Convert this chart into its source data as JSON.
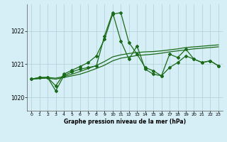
{
  "title": "Graphe pression niveau de la mer (hPa)",
  "background_color": "#d6eef5",
  "grid_color": "#b0cdd8",
  "line_color": "#1a6b1a",
  "xlim": [
    -0.5,
    23.5
  ],
  "ylim": [
    1019.6,
    1022.8
  ],
  "yticks": [
    1020,
    1021,
    1022
  ],
  "xticks": [
    0,
    1,
    2,
    3,
    4,
    5,
    6,
    7,
    8,
    9,
    10,
    11,
    12,
    13,
    14,
    15,
    16,
    17,
    18,
    19,
    20,
    21,
    22,
    23
  ],
  "series1_x": [
    0,
    1,
    2,
    3,
    4,
    5,
    6,
    7,
    8,
    9,
    10,
    11,
    12,
    13,
    14,
    15,
    16,
    17,
    18,
    19,
    20,
    21,
    22,
    23
  ],
  "series1_y": [
    1020.55,
    1020.6,
    1020.6,
    1020.35,
    1020.7,
    1020.82,
    1020.93,
    1021.05,
    1021.25,
    1021.75,
    1022.5,
    1022.55,
    1021.65,
    1021.3,
    1020.9,
    1020.8,
    1020.65,
    1020.9,
    1021.05,
    1021.25,
    1021.15,
    1021.05,
    1021.1,
    1020.95
  ],
  "series2_x": [
    0,
    1,
    2,
    3,
    4,
    5,
    6,
    7,
    8,
    9,
    10,
    11,
    12,
    13,
    14,
    15,
    16,
    17,
    18,
    19,
    20,
    21,
    22,
    23
  ],
  "series2_y": [
    1020.55,
    1020.57,
    1020.58,
    1020.55,
    1020.6,
    1020.65,
    1020.7,
    1020.78,
    1020.87,
    1020.97,
    1021.1,
    1021.18,
    1021.22,
    1021.26,
    1021.28,
    1021.3,
    1021.33,
    1021.37,
    1021.4,
    1021.43,
    1021.46,
    1021.48,
    1021.5,
    1021.52
  ],
  "series3_x": [
    0,
    1,
    2,
    3,
    4,
    5,
    6,
    7,
    8,
    9,
    10,
    11,
    12,
    13,
    14,
    15,
    16,
    17,
    18,
    19,
    20,
    21,
    22,
    23
  ],
  "series3_y": [
    1020.55,
    1020.57,
    1020.6,
    1020.58,
    1020.63,
    1020.7,
    1020.78,
    1020.87,
    1020.96,
    1021.08,
    1021.22,
    1021.28,
    1021.32,
    1021.35,
    1021.37,
    1021.38,
    1021.4,
    1021.43,
    1021.46,
    1021.5,
    1021.52,
    1021.54,
    1021.56,
    1021.58
  ],
  "series4_x": [
    0,
    1,
    2,
    3,
    4,
    5,
    6,
    7,
    8,
    9,
    10,
    11,
    12,
    13,
    14,
    15,
    16,
    17,
    18,
    19,
    20,
    21,
    22,
    23
  ],
  "series4_y": [
    1020.55,
    1020.6,
    1020.6,
    1020.2,
    1020.65,
    1020.77,
    1020.85,
    1020.9,
    1020.95,
    1021.85,
    1022.55,
    1021.7,
    1021.15,
    1021.55,
    1020.85,
    1020.7,
    1020.65,
    1021.3,
    1021.2,
    1021.45,
    1021.15,
    1021.05,
    1021.1,
    1020.95
  ]
}
